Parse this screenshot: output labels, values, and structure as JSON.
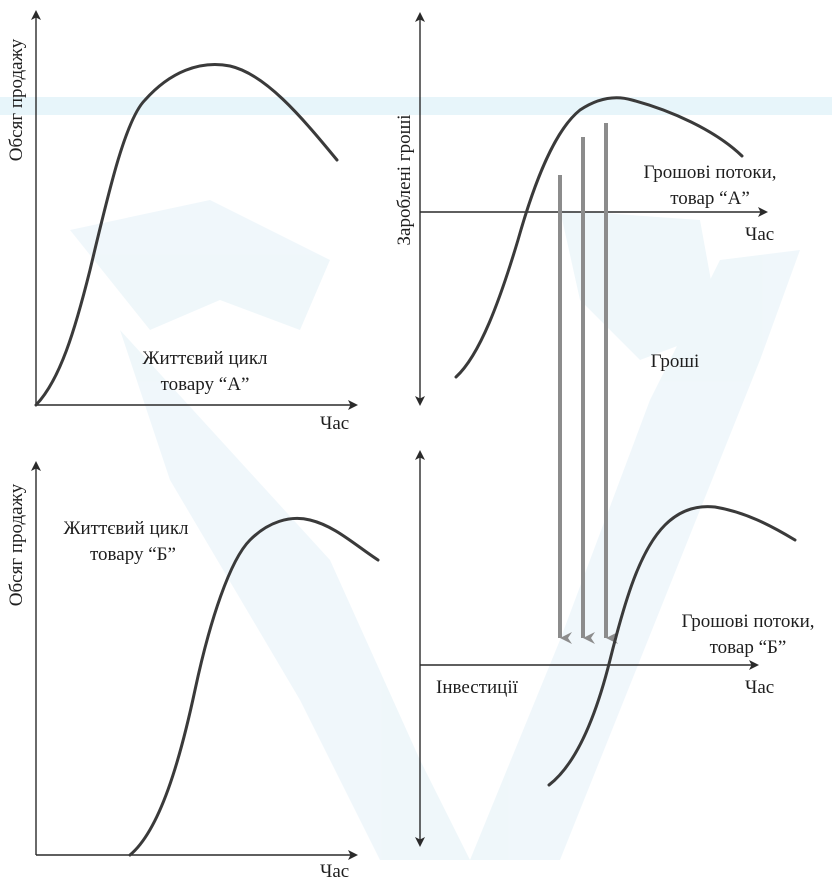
{
  "colors": {
    "axis": "#2a2a2a",
    "curve": "#3a3a3a",
    "flow_arrow": "#8c8c8c",
    "watermark_light": "#e3f1f7",
    "watermark_band": "#d4ecf5"
  },
  "watermark": "faded-logo-background",
  "panels": {
    "top_left": {
      "y_axis_label": "Обсяг продажу",
      "x_axis_label": "Час",
      "curve_label_line1": "Життєвий цикл",
      "curve_label_line2": "товару “А”"
    },
    "bottom_left": {
      "y_axis_label": "Обсяг продажу",
      "x_axis_label": "Час",
      "curve_label_line1": "Життєвий цикл",
      "curve_label_line2": "товару  “Б”"
    },
    "top_right": {
      "y_axis_label": "Зароблені гроші",
      "x_axis_label": "Час",
      "flow_label_line1": "Грошові потоки,",
      "flow_label_line2": "товар  “А”",
      "money_label": "Гроші"
    },
    "bottom_right": {
      "x_axis_label": "Час",
      "flow_label_line1": "Грошові потоки,",
      "flow_label_line2": "товар  “Б”",
      "investment_label": "Інвестиції"
    }
  }
}
